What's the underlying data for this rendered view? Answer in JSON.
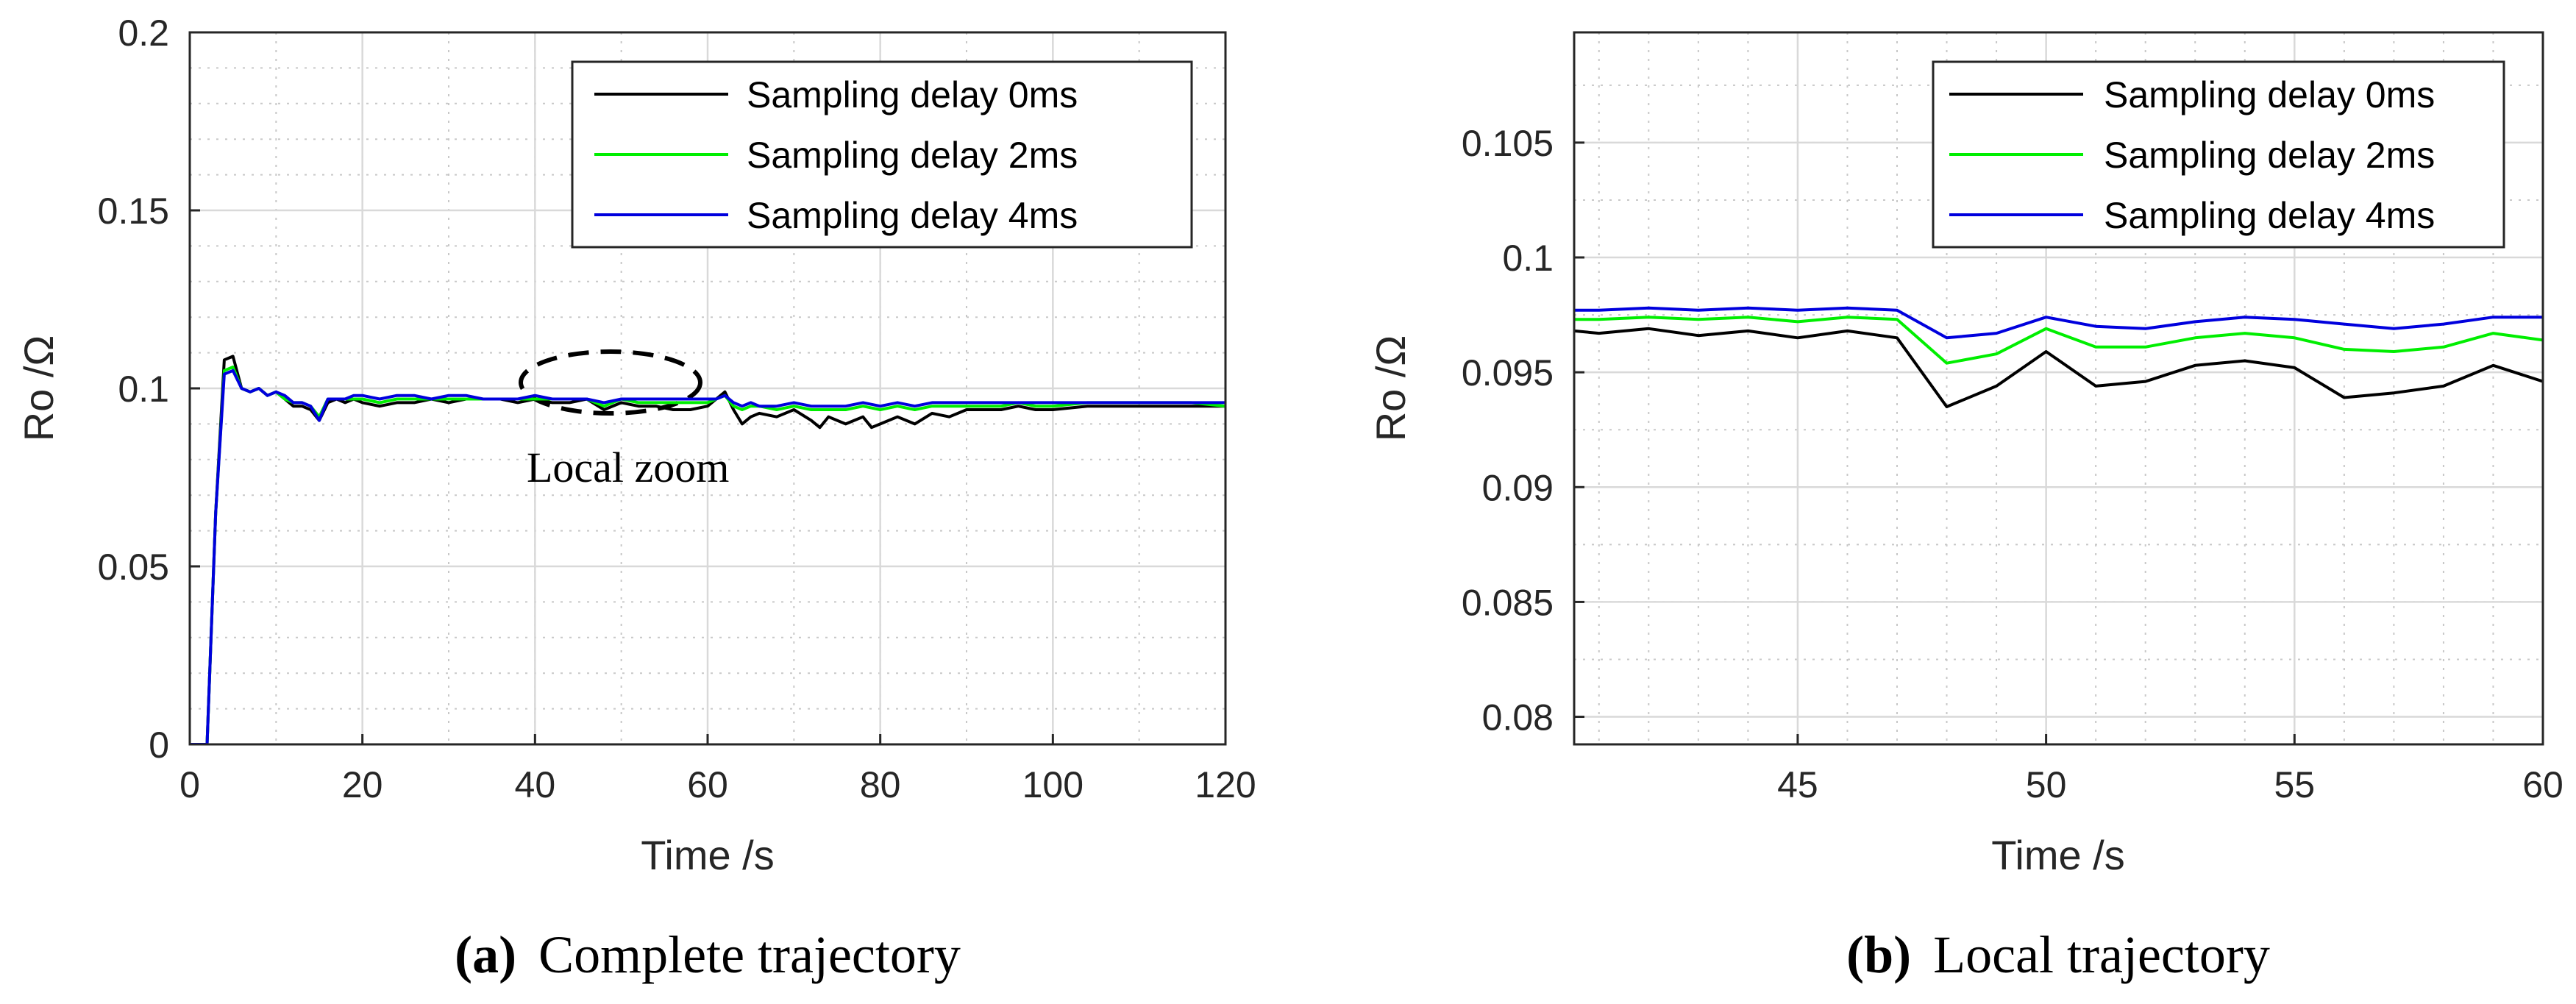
{
  "colors": {
    "s0": "#000000",
    "s2": "#00ee00",
    "s4": "#0000dd",
    "grid": "#bdbdbd",
    "axis": "#262626"
  },
  "chart_data": [
    {
      "type": "line",
      "caption_label": "(a)",
      "caption_text": "Complete trajectory",
      "xlabel": "Time /s",
      "ylabel": "Ro /Ω",
      "xlim": [
        0,
        120
      ],
      "ylim": [
        0,
        0.2
      ],
      "xticks": [
        0,
        20,
        40,
        60,
        80,
        100,
        120
      ],
      "xtick_labels": [
        "0",
        "20",
        "40",
        "60",
        "80",
        "100",
        "120"
      ],
      "yticks": [
        0,
        0.05,
        0.1,
        0.15,
        0.2
      ],
      "ytick_labels": [
        "0",
        "0.05",
        "0.1",
        "0.15",
        "0.2"
      ],
      "annotation": "Local zoom",
      "series": [
        {
          "name": "Sampling delay 0ms",
          "color_key": "s0",
          "x": [
            0,
            1,
            2,
            3,
            4,
            5,
            6,
            7,
            8,
            9,
            10,
            11,
            12,
            13,
            14,
            15,
            16,
            17,
            18,
            19,
            20,
            22,
            24,
            26,
            28,
            30,
            32,
            34,
            36,
            38,
            40,
            42,
            44,
            46,
            48,
            50,
            52,
            54,
            56,
            58,
            60,
            61,
            62,
            63,
            64,
            65,
            66,
            68,
            70,
            72,
            73,
            74,
            76,
            78,
            79,
            80,
            82,
            84,
            86,
            88,
            90,
            92,
            94,
            96,
            98,
            100,
            104,
            108,
            112,
            116,
            120
          ],
          "y": [
            0,
            0,
            0,
            0.065,
            0.108,
            0.109,
            0.1,
            0.099,
            0.1,
            0.098,
            0.099,
            0.097,
            0.095,
            0.095,
            0.094,
            0.091,
            0.096,
            0.097,
            0.096,
            0.097,
            0.096,
            0.095,
            0.096,
            0.096,
            0.097,
            0.096,
            0.097,
            0.097,
            0.097,
            0.096,
            0.097,
            0.096,
            0.096,
            0.097,
            0.094,
            0.096,
            0.095,
            0.095,
            0.094,
            0.094,
            0.095,
            0.097,
            0.099,
            0.094,
            0.09,
            0.092,
            0.093,
            0.092,
            0.094,
            0.091,
            0.089,
            0.092,
            0.09,
            0.092,
            0.089,
            0.09,
            0.092,
            0.09,
            0.093,
            0.092,
            0.094,
            0.094,
            0.094,
            0.095,
            0.094,
            0.094,
            0.095,
            0.095,
            0.095,
            0.095,
            0.095
          ]
        },
        {
          "name": "Sampling delay 2ms",
          "color_key": "s2",
          "x": [
            0,
            1,
            2,
            3,
            4,
            5,
            6,
            7,
            8,
            9,
            10,
            11,
            12,
            13,
            14,
            15,
            16,
            17,
            18,
            19,
            20,
            22,
            24,
            26,
            28,
            30,
            32,
            34,
            36,
            38,
            40,
            42,
            44,
            46,
            48,
            50,
            52,
            54,
            56,
            58,
            60,
            61,
            62,
            63,
            64,
            65,
            66,
            68,
            70,
            72,
            74,
            76,
            78,
            80,
            82,
            84,
            86,
            88,
            90,
            92,
            94,
            96,
            98,
            100,
            104,
            108,
            112,
            116,
            120
          ],
          "y": [
            0,
            0,
            0,
            0.065,
            0.105,
            0.106,
            0.1,
            0.099,
            0.1,
            0.098,
            0.099,
            0.097,
            0.096,
            0.096,
            0.095,
            0.092,
            0.097,
            0.097,
            0.097,
            0.097,
            0.097,
            0.096,
            0.097,
            0.097,
            0.097,
            0.097,
            0.097,
            0.097,
            0.097,
            0.097,
            0.097,
            0.097,
            0.097,
            0.097,
            0.095,
            0.097,
            0.096,
            0.096,
            0.096,
            0.096,
            0.096,
            0.097,
            0.098,
            0.095,
            0.094,
            0.095,
            0.095,
            0.094,
            0.095,
            0.094,
            0.094,
            0.094,
            0.095,
            0.094,
            0.095,
            0.094,
            0.095,
            0.095,
            0.095,
            0.095,
            0.095,
            0.096,
            0.095,
            0.095,
            0.096,
            0.096,
            0.096,
            0.096,
            0.095
          ]
        },
        {
          "name": "Sampling delay 4ms",
          "color_key": "s4",
          "x": [
            0,
            1,
            2,
            3,
            4,
            5,
            6,
            7,
            8,
            9,
            10,
            11,
            12,
            13,
            14,
            15,
            16,
            17,
            18,
            19,
            20,
            22,
            24,
            26,
            28,
            30,
            32,
            34,
            36,
            38,
            40,
            42,
            44,
            46,
            48,
            50,
            52,
            54,
            56,
            58,
            60,
            61,
            62,
            63,
            64,
            65,
            66,
            68,
            70,
            72,
            74,
            76,
            78,
            80,
            82,
            84,
            86,
            88,
            90,
            92,
            94,
            96,
            98,
            100,
            104,
            108,
            112,
            116,
            120
          ],
          "y": [
            0,
            0,
            0,
            0.065,
            0.104,
            0.105,
            0.1,
            0.099,
            0.1,
            0.098,
            0.099,
            0.098,
            0.096,
            0.096,
            0.095,
            0.091,
            0.097,
            0.097,
            0.097,
            0.098,
            0.098,
            0.097,
            0.098,
            0.098,
            0.097,
            0.098,
            0.098,
            0.097,
            0.097,
            0.097,
            0.098,
            0.097,
            0.097,
            0.097,
            0.096,
            0.097,
            0.097,
            0.097,
            0.097,
            0.097,
            0.097,
            0.097,
            0.098,
            0.096,
            0.095,
            0.096,
            0.095,
            0.095,
            0.096,
            0.095,
            0.095,
            0.095,
            0.096,
            0.095,
            0.096,
            0.095,
            0.096,
            0.096,
            0.096,
            0.096,
            0.096,
            0.096,
            0.096,
            0.096,
            0.096,
            0.096,
            0.096,
            0.096,
            0.096
          ]
        }
      ]
    },
    {
      "type": "line",
      "caption_label": "(b)",
      "caption_text": "Local trajectory",
      "xlabel": "Time /s",
      "ylabel": "Ro /Ω",
      "xlim": [
        40.5,
        60
      ],
      "ylim": [
        0.0788,
        0.1098
      ],
      "xticks": [
        45,
        50,
        55,
        60
      ],
      "xtick_labels": [
        "45",
        "50",
        "55",
        "60"
      ],
      "yticks": [
        0.08,
        0.085,
        0.09,
        0.095,
        0.1,
        0.105
      ],
      "ytick_labels": [
        "0.08",
        "0.085",
        "0.09",
        "0.095",
        "0.1",
        "0.105"
      ],
      "series": [
        {
          "name": "Sampling delay 0ms",
          "color_key": "s0",
          "x": [
            40.5,
            41,
            42,
            43,
            44,
            45,
            46,
            47,
            48,
            49,
            50,
            51,
            52,
            53,
            54,
            55,
            56,
            57,
            58,
            59,
            60
          ],
          "y": [
            0.0968,
            0.0967,
            0.0969,
            0.0966,
            0.0968,
            0.0965,
            0.0968,
            0.0965,
            0.0935,
            0.0944,
            0.0959,
            0.0944,
            0.0946,
            0.0953,
            0.0955,
            0.0952,
            0.0939,
            0.0941,
            0.0944,
            0.0953,
            0.0946
          ]
        },
        {
          "name": "Sampling delay 2ms",
          "color_key": "s2",
          "x": [
            40.5,
            41,
            42,
            43,
            44,
            45,
            46,
            47,
            48,
            49,
            50,
            51,
            52,
            53,
            54,
            55,
            56,
            57,
            58,
            59,
            60
          ],
          "y": [
            0.0973,
            0.0973,
            0.0974,
            0.0973,
            0.0974,
            0.0972,
            0.0974,
            0.0973,
            0.0954,
            0.0958,
            0.0969,
            0.0961,
            0.0961,
            0.0965,
            0.0967,
            0.0965,
            0.096,
            0.0959,
            0.0961,
            0.0967,
            0.0964
          ]
        },
        {
          "name": "Sampling delay 4ms",
          "color_key": "s4",
          "x": [
            40.5,
            41,
            42,
            43,
            44,
            45,
            46,
            47,
            48,
            49,
            50,
            51,
            52,
            53,
            54,
            55,
            56,
            57,
            58,
            59,
            60
          ],
          "y": [
            0.0977,
            0.0977,
            0.0978,
            0.0977,
            0.0978,
            0.0977,
            0.0978,
            0.0977,
            0.0965,
            0.0967,
            0.0974,
            0.097,
            0.0969,
            0.0972,
            0.0974,
            0.0973,
            0.0971,
            0.0969,
            0.0971,
            0.0974,
            0.0974
          ]
        }
      ]
    }
  ]
}
